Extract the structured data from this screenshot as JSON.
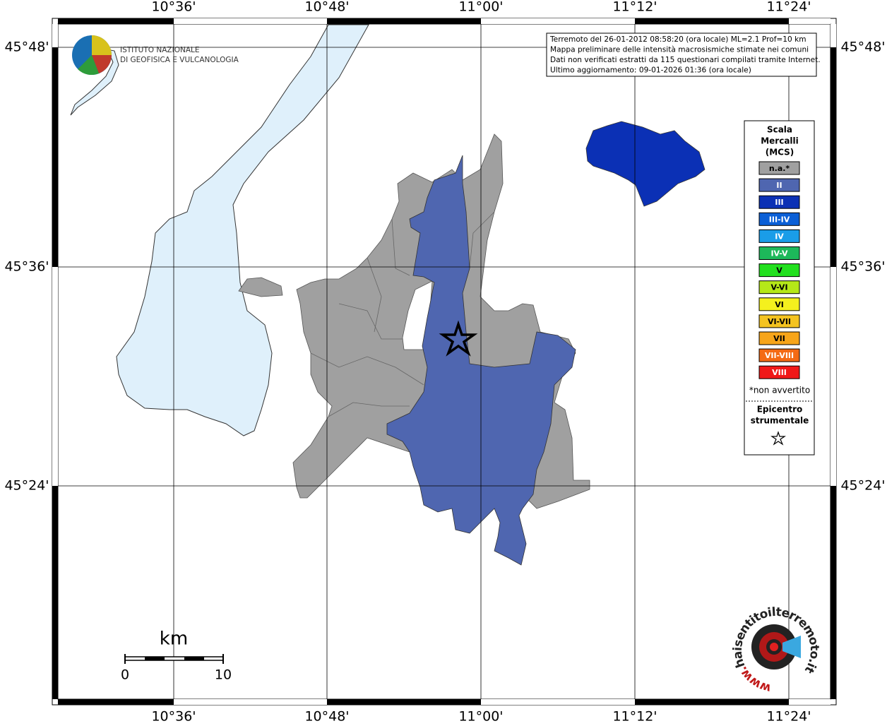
{
  "map": {
    "longitude_labels": [
      "10°36'",
      "10°48'",
      "11°00'",
      "11°12'",
      "11°24'"
    ],
    "latitude_labels": [
      "45°48'",
      "45°36'",
      "45°24'"
    ],
    "info_box": [
      "Terremoto del 26-01-2012 08:58:20 (ora locale) ML=2.1 Prof=10 km",
      "Mappa preliminare delle intensità macrosismiche stimate nei comuni",
      "Dati non verificati estratti da 115 questionari compilati tramite Internet.",
      "Ultimo aggiornamento: 09-01-2026 01:36 (ora locale)"
    ],
    "institute": [
      "ISTITUTO NAZIONALE",
      "DI GEOFISICA E VULCANOLOGIA"
    ],
    "legend": {
      "title": [
        "Scala",
        "Mercalli",
        "(MCS)"
      ],
      "items": [
        {
          "label": "n.a.*",
          "color": "#a0a0a0"
        },
        {
          "label": "II",
          "color": "#4f66b0"
        },
        {
          "label": "III",
          "color": "#0b30b5"
        },
        {
          "label": "III-IV",
          "color": "#0b5fd6"
        },
        {
          "label": "IV",
          "color": "#1a9de8"
        },
        {
          "label": "IV-V",
          "color": "#1db85a"
        },
        {
          "label": "V",
          "color": "#22e01e"
        },
        {
          "label": "V-VI",
          "color": "#b5e818"
        },
        {
          "label": "VI",
          "color": "#f4f01e"
        },
        {
          "label": "VI-VII",
          "color": "#f4c320"
        },
        {
          "label": "VII",
          "color": "#f7a51a"
        },
        {
          "label": "VII-VIII",
          "color": "#f46a14"
        },
        {
          "label": "VIII",
          "color": "#f01818"
        }
      ],
      "note": "*non avvertito",
      "epicenter_title": [
        "Epicentro",
        "strumentale"
      ]
    },
    "scale_bar": {
      "unit": "km",
      "labels": [
        "0",
        "10"
      ]
    },
    "site_logo": {
      "prefix": "www.",
      "text": "haisentitoilterremoto.it"
    }
  }
}
